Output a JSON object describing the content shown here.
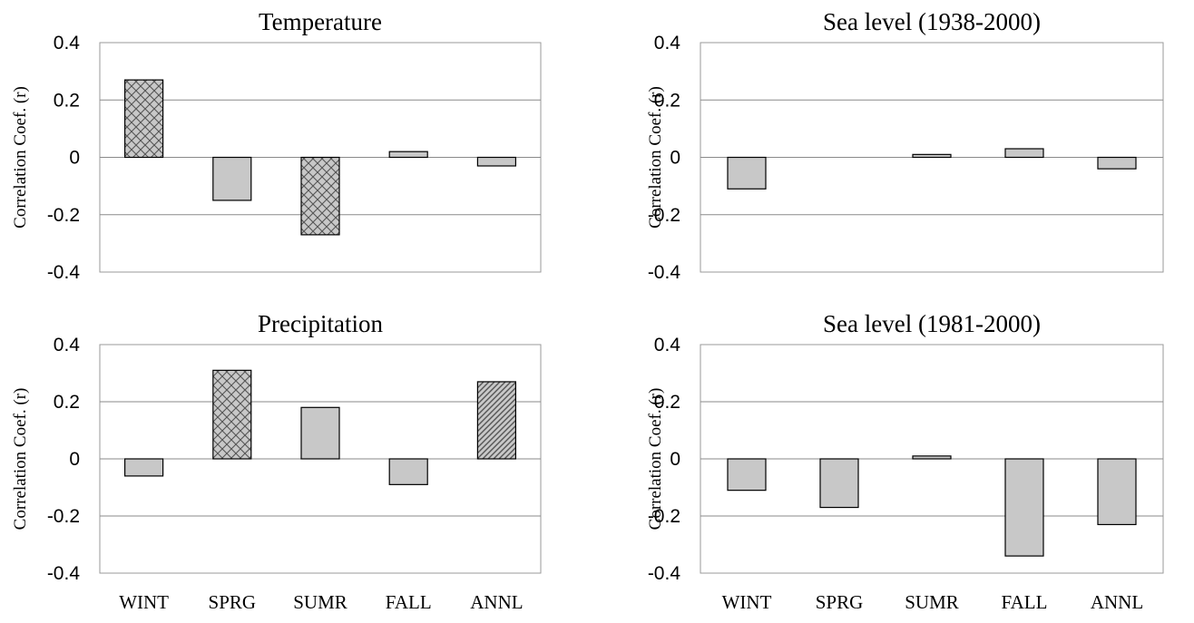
{
  "colors": {
    "bar_fill": "#c8c8c8",
    "hatch_line": "#555555",
    "grid": "#8a8a8a",
    "frame": "#9a9a9a"
  },
  "chart_data": [
    {
      "type": "bar",
      "title": "Temperature",
      "ylabel": "Correlation Coef. (r)",
      "xlabel": "",
      "ylim": [
        -0.4,
        0.4
      ],
      "yticks": [
        "0.4",
        "0.2",
        "0",
        "-0.2",
        "-0.4"
      ],
      "grid": true,
      "categories": [
        "WINT",
        "SPRG",
        "SUMR",
        "FALL",
        "ANNL"
      ],
      "show_xtick_labels": false,
      "values": [
        0.27,
        -0.15,
        -0.27,
        0.02,
        -0.03
      ],
      "patterns": [
        "crosshatch",
        "solid",
        "crosshatch",
        "solid",
        "solid"
      ]
    },
    {
      "type": "bar",
      "title": "Sea level (1938-2000)",
      "ylabel": "Correlation Coef. (r)",
      "xlabel": "",
      "ylim": [
        -0.4,
        0.4
      ],
      "yticks": [
        "0.4",
        "0.2",
        "0",
        "-0.2",
        "-0.4"
      ],
      "grid": true,
      "categories": [
        "WINT",
        "SPRG",
        "SUMR",
        "FALL",
        "ANNL"
      ],
      "show_xtick_labels": false,
      "values": [
        -0.11,
        0.0,
        0.01,
        0.03,
        -0.04
      ],
      "patterns": [
        "solid",
        "solid",
        "solid",
        "solid",
        "solid"
      ]
    },
    {
      "type": "bar",
      "title": "Precipitation",
      "ylabel": "Correlation Coef. (r)",
      "xlabel": "",
      "ylim": [
        -0.4,
        0.4
      ],
      "yticks": [
        "0.4",
        "0.2",
        "0",
        "-0.2",
        "-0.4"
      ],
      "grid": true,
      "categories": [
        "WINT",
        "SPRG",
        "SUMR",
        "FALL",
        "ANNL"
      ],
      "show_xtick_labels": true,
      "values": [
        -0.06,
        0.31,
        0.18,
        -0.09,
        0.27
      ],
      "patterns": [
        "solid",
        "crosshatch",
        "solid",
        "solid",
        "diagonal"
      ]
    },
    {
      "type": "bar",
      "title": "Sea level (1981-2000)",
      "ylabel": "Correlation Coef. (r)",
      "xlabel": "",
      "ylim": [
        -0.4,
        0.4
      ],
      "yticks": [
        "0.4",
        "0.2",
        "0",
        "-0.2",
        "-0.4"
      ],
      "grid": true,
      "categories": [
        "WINT",
        "SPRG",
        "SUMR",
        "FALL",
        "ANNL"
      ],
      "show_xtick_labels": true,
      "values": [
        -0.11,
        -0.17,
        0.01,
        -0.34,
        -0.23
      ],
      "patterns": [
        "solid",
        "solid",
        "solid",
        "solid",
        "solid"
      ]
    }
  ]
}
